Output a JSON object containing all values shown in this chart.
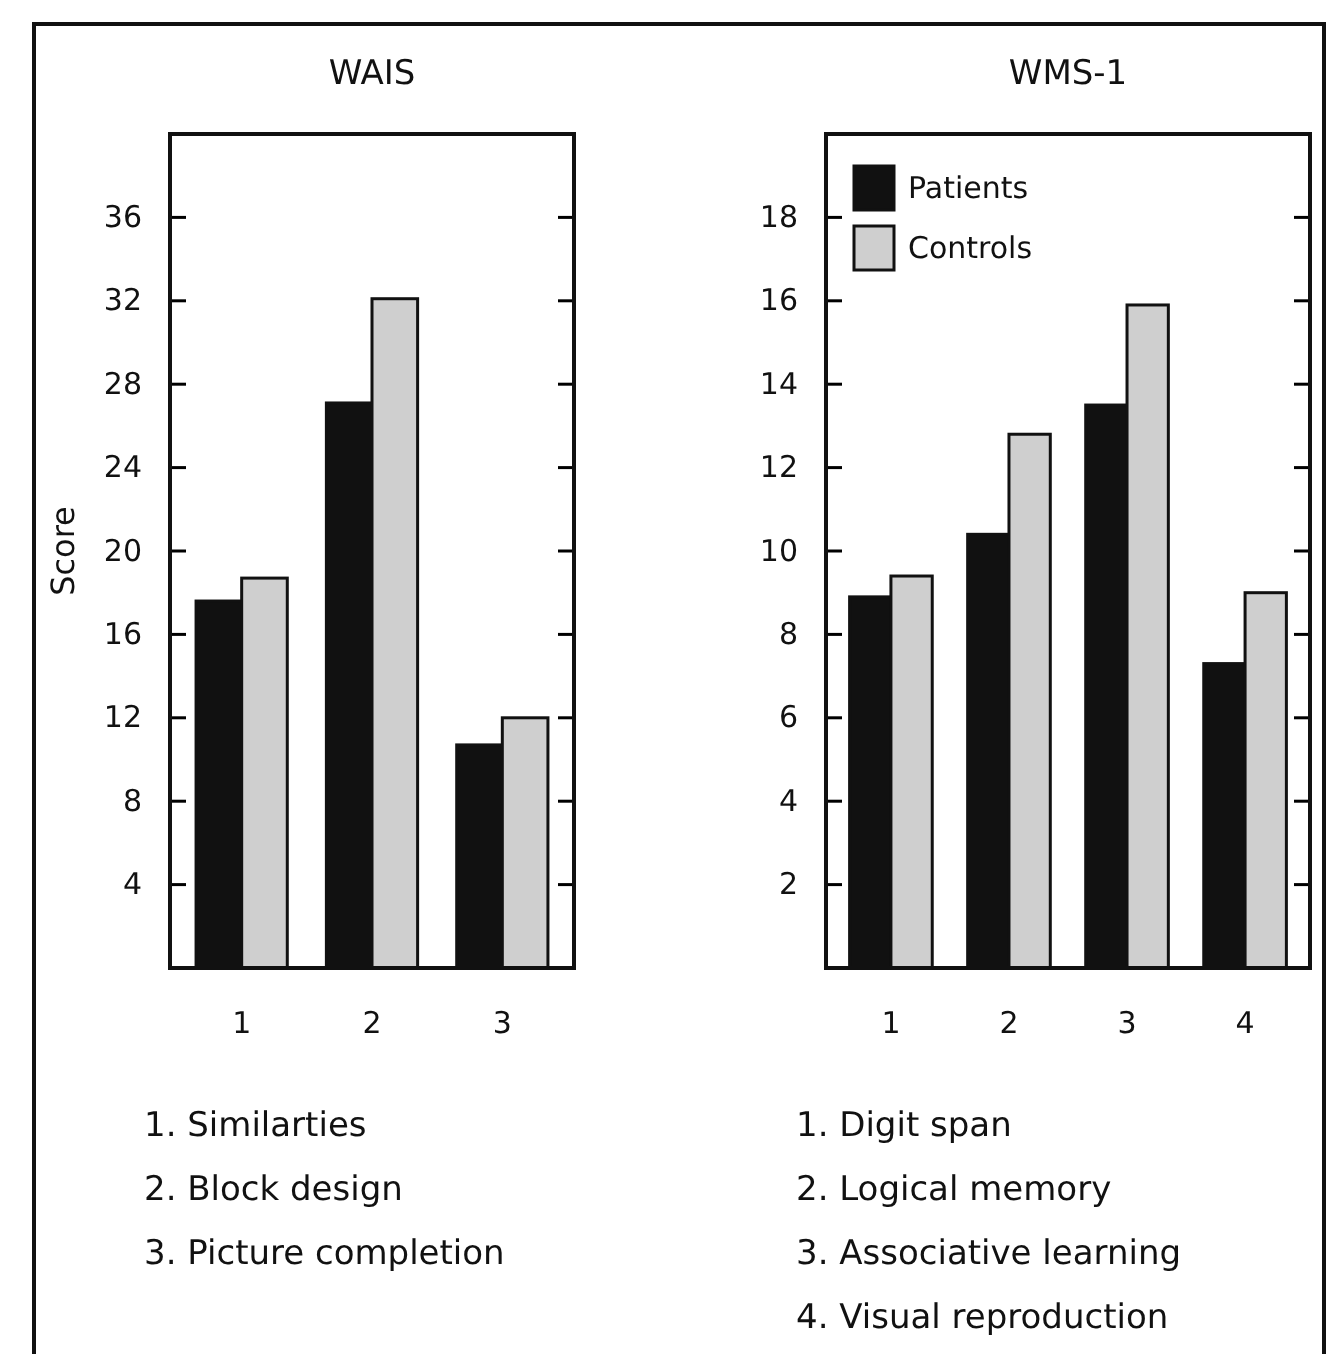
{
  "chart_data": [
    {
      "type": "bar",
      "title": "WAIS",
      "ylabel": "Score",
      "categories": [
        "1",
        "2",
        "3"
      ],
      "series": [
        {
          "color": "#111111",
          "values": [
            17.6,
            27.1,
            10.7
          ]
        },
        {
          "color": "#cfcfcf",
          "values": [
            18.7,
            32.1,
            12.0
          ]
        }
      ],
      "ylim": [
        0,
        40
      ],
      "yticks": [
        4,
        8,
        12,
        16,
        20,
        24,
        28,
        32,
        36
      ],
      "annotations": [
        "1. Similarties",
        "2. Block design",
        "3. Picture completion"
      ]
    },
    {
      "type": "bar",
      "title": "WMS-1",
      "categories": [
        "1",
        "2",
        "3",
        "4"
      ],
      "series": [
        {
          "name": "Patients",
          "color": "#111111",
          "values": [
            8.9,
            10.4,
            13.5,
            7.3
          ]
        },
        {
          "name": "Controls",
          "color": "#cfcfcf",
          "values": [
            9.4,
            12.8,
            15.9,
            9.0
          ]
        }
      ],
      "ylim": [
        0,
        20
      ],
      "yticks": [
        2,
        4,
        6,
        8,
        10,
        12,
        14,
        16,
        18
      ],
      "legend": "top left",
      "annotations": [
        "1. Digit span",
        "2. Logical memory",
        "3. Associative learning",
        "4. Visual reproduction"
      ]
    }
  ]
}
